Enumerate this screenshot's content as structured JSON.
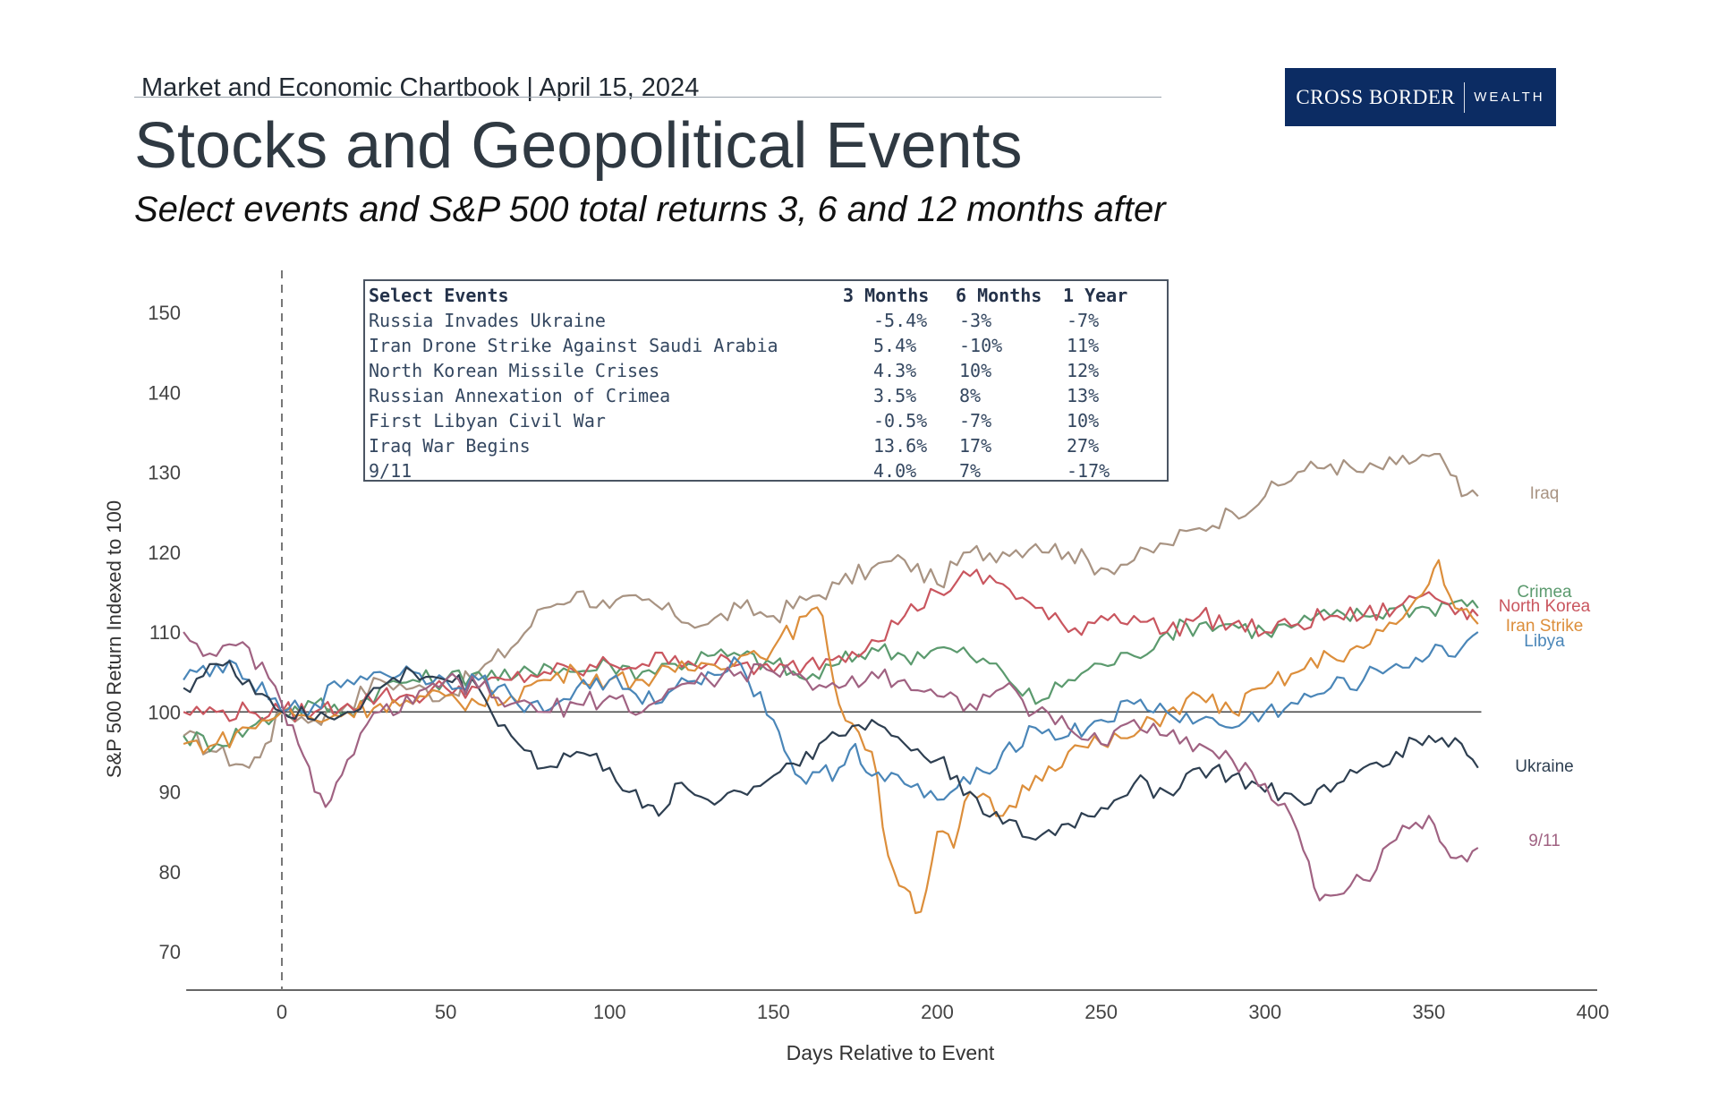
{
  "header": {
    "chartbook": "Market and Economic Chartbook | April 15, 2024",
    "title": "Stocks and Geopolitical Events",
    "subtitle": "Select events and S&P 500 total returns 3, 6 and 12 months after"
  },
  "logo": {
    "primary": "CROSS BORDER",
    "secondary": "WEALTH",
    "bg_color": "#0c2c63"
  },
  "table": {
    "headers": [
      "Select Events",
      "3 Months",
      "6 Months",
      "1 Year"
    ],
    "rows": [
      [
        "Russia Invades Ukraine",
        "-5.4%",
        "-3%",
        "-7%"
      ],
      [
        "Iran Drone Strike Against Saudi Arabia",
        "5.4%",
        "-10%",
        "11%"
      ],
      [
        "North Korean Missile Crises",
        "4.3%",
        "10%",
        "12%"
      ],
      [
        "Russian Annexation of Crimea",
        "3.5%",
        "8%",
        "13%"
      ],
      [
        "First Libyan Civil War",
        "-0.5%",
        "-7%",
        "10%"
      ],
      [
        "Iraq War Begins",
        "13.6%",
        "17%",
        "27%"
      ],
      [
        "9/11",
        "4.0%",
        "7%",
        "-17%"
      ]
    ]
  },
  "chart_data": {
    "type": "line",
    "xlabel": "Days Relative to Event",
    "ylabel": "S&P 500 Return Indexed to 100",
    "xlim": [
      -30,
      400
    ],
    "ylim": [
      65,
      155
    ],
    "xticks": [
      0,
      50,
      100,
      150,
      200,
      250,
      300,
      350,
      400
    ],
    "yticks": [
      70,
      80,
      90,
      100,
      110,
      120,
      130,
      140,
      150
    ],
    "reference_line_y": 100,
    "event_line_x": 0,
    "legend": "right-side labels",
    "series": [
      {
        "name": "Iraq",
        "color": "#a89382",
        "points": [
          [
            -30,
            97
          ],
          [
            -20,
            95
          ],
          [
            -10,
            93
          ],
          [
            -5,
            96
          ],
          [
            0,
            100
          ],
          [
            10,
            99
          ],
          [
            20,
            101
          ],
          [
            30,
            104
          ],
          [
            40,
            103
          ],
          [
            50,
            102
          ],
          [
            60,
            105
          ],
          [
            70,
            108
          ],
          [
            80,
            113
          ],
          [
            90,
            115
          ],
          [
            100,
            113
          ],
          [
            110,
            114
          ],
          [
            120,
            112
          ],
          [
            130,
            111
          ],
          [
            140,
            113
          ],
          [
            150,
            112
          ],
          [
            160,
            114
          ],
          [
            170,
            116
          ],
          [
            180,
            118
          ],
          [
            190,
            119
          ],
          [
            200,
            116
          ],
          [
            210,
            120
          ],
          [
            220,
            120
          ],
          [
            230,
            121
          ],
          [
            240,
            120
          ],
          [
            250,
            118
          ],
          [
            260,
            119
          ],
          [
            270,
            121
          ],
          [
            280,
            123
          ],
          [
            290,
            125
          ],
          [
            300,
            127
          ],
          [
            310,
            130
          ],
          [
            320,
            131
          ],
          [
            330,
            130
          ],
          [
            340,
            131
          ],
          [
            350,
            132
          ],
          [
            355,
            131
          ],
          [
            360,
            127
          ],
          [
            365,
            127
          ]
        ]
      },
      {
        "name": "Crimea",
        "color": "#5b9a6e",
        "points": [
          [
            -30,
            97
          ],
          [
            -20,
            96
          ],
          [
            -10,
            98
          ],
          [
            0,
            100
          ],
          [
            10,
            101
          ],
          [
            20,
            100
          ],
          [
            30,
            103
          ],
          [
            40,
            104
          ],
          [
            50,
            104
          ],
          [
            60,
            105
          ],
          [
            70,
            104
          ],
          [
            80,
            106
          ],
          [
            90,
            105
          ],
          [
            100,
            106
          ],
          [
            110,
            105
          ],
          [
            120,
            106
          ],
          [
            130,
            107
          ],
          [
            140,
            107
          ],
          [
            150,
            106
          ],
          [
            160,
            104
          ],
          [
            170,
            106
          ],
          [
            180,
            108
          ],
          [
            190,
            107
          ],
          [
            200,
            108
          ],
          [
            210,
            107
          ],
          [
            220,
            105
          ],
          [
            230,
            101
          ],
          [
            240,
            104
          ],
          [
            250,
            106
          ],
          [
            260,
            107
          ],
          [
            270,
            110
          ],
          [
            280,
            111
          ],
          [
            290,
            111
          ],
          [
            300,
            110
          ],
          [
            310,
            111
          ],
          [
            320,
            112
          ],
          [
            330,
            112
          ],
          [
            340,
            113
          ],
          [
            350,
            113
          ],
          [
            360,
            114
          ],
          [
            365,
            113
          ]
        ]
      },
      {
        "name": "North Korea",
        "color": "#c9565f",
        "points": [
          [
            -30,
            100
          ],
          [
            -20,
            100
          ],
          [
            -10,
            100
          ],
          [
            0,
            100
          ],
          [
            10,
            100
          ],
          [
            20,
            101
          ],
          [
            30,
            102
          ],
          [
            40,
            102
          ],
          [
            50,
            103
          ],
          [
            60,
            103
          ],
          [
            70,
            104
          ],
          [
            80,
            105
          ],
          [
            90,
            105
          ],
          [
            100,
            106
          ],
          [
            110,
            106
          ],
          [
            120,
            107
          ],
          [
            130,
            106
          ],
          [
            140,
            106
          ],
          [
            150,
            105
          ],
          [
            160,
            106
          ],
          [
            170,
            107
          ],
          [
            180,
            109
          ],
          [
            190,
            112
          ],
          [
            200,
            115
          ],
          [
            210,
            117
          ],
          [
            220,
            116
          ],
          [
            230,
            113
          ],
          [
            240,
            110
          ],
          [
            250,
            112
          ],
          [
            260,
            112
          ],
          [
            270,
            110
          ],
          [
            280,
            112
          ],
          [
            290,
            111
          ],
          [
            300,
            110
          ],
          [
            310,
            111
          ],
          [
            320,
            112
          ],
          [
            330,
            112
          ],
          [
            340,
            113
          ],
          [
            350,
            115
          ],
          [
            360,
            113
          ],
          [
            365,
            112
          ]
        ]
      },
      {
        "name": "Iran Strike",
        "color": "#dc8e3b",
        "points": [
          [
            -30,
            96
          ],
          [
            -20,
            96
          ],
          [
            -10,
            98
          ],
          [
            0,
            100
          ],
          [
            10,
            99
          ],
          [
            20,
            100
          ],
          [
            30,
            101
          ],
          [
            40,
            101
          ],
          [
            50,
            102
          ],
          [
            60,
            101
          ],
          [
            70,
            102
          ],
          [
            80,
            104
          ],
          [
            90,
            105
          ],
          [
            100,
            104
          ],
          [
            110,
            104
          ],
          [
            120,
            105
          ],
          [
            130,
            106
          ],
          [
            140,
            107
          ],
          [
            150,
            108
          ],
          [
            160,
            112
          ],
          [
            165,
            112
          ],
          [
            170,
            101
          ],
          [
            180,
            95
          ],
          [
            185,
            82
          ],
          [
            190,
            78
          ],
          [
            195,
            75
          ],
          [
            200,
            85
          ],
          [
            205,
            83
          ],
          [
            210,
            90
          ],
          [
            220,
            87
          ],
          [
            230,
            92
          ],
          [
            240,
            95
          ],
          [
            250,
            96
          ],
          [
            260,
            97
          ],
          [
            270,
            100
          ],
          [
            280,
            102
          ],
          [
            290,
            100
          ],
          [
            300,
            103
          ],
          [
            310,
            105
          ],
          [
            320,
            107
          ],
          [
            330,
            108
          ],
          [
            340,
            111
          ],
          [
            350,
            116
          ],
          [
            353,
            119
          ],
          [
            358,
            113
          ],
          [
            365,
            111
          ]
        ]
      },
      {
        "name": "Libya",
        "color": "#4a86b8",
        "points": [
          [
            -30,
            104
          ],
          [
            -20,
            106
          ],
          [
            -10,
            104
          ],
          [
            0,
            100
          ],
          [
            10,
            101
          ],
          [
            20,
            104
          ],
          [
            30,
            105
          ],
          [
            40,
            105
          ],
          [
            50,
            104
          ],
          [
            60,
            104
          ],
          [
            70,
            102
          ],
          [
            80,
            100
          ],
          [
            90,
            103
          ],
          [
            100,
            104
          ],
          [
            110,
            101
          ],
          [
            120,
            103
          ],
          [
            130,
            105
          ],
          [
            140,
            106
          ],
          [
            150,
            99
          ],
          [
            155,
            94
          ],
          [
            160,
            91
          ],
          [
            170,
            93
          ],
          [
            175,
            96
          ],
          [
            180,
            92
          ],
          [
            190,
            91
          ],
          [
            200,
            89
          ],
          [
            210,
            91
          ],
          [
            220,
            95
          ],
          [
            230,
            98
          ],
          [
            240,
            97
          ],
          [
            250,
            99
          ],
          [
            260,
            101
          ],
          [
            270,
            100
          ],
          [
            280,
            99
          ],
          [
            290,
            98
          ],
          [
            300,
            100
          ],
          [
            310,
            101
          ],
          [
            320,
            103
          ],
          [
            330,
            104
          ],
          [
            340,
            106
          ],
          [
            350,
            107
          ],
          [
            360,
            108
          ],
          [
            365,
            110
          ]
        ]
      },
      {
        "name": "Ukraine",
        "color": "#2e3f51",
        "points": [
          [
            -30,
            103
          ],
          [
            -20,
            106
          ],
          [
            -10,
            104
          ],
          [
            0,
            100
          ],
          [
            10,
            99
          ],
          [
            20,
            100
          ],
          [
            30,
            103
          ],
          [
            40,
            105
          ],
          [
            50,
            104
          ],
          [
            60,
            103
          ],
          [
            70,
            97
          ],
          [
            80,
            93
          ],
          [
            90,
            95
          ],
          [
            100,
            93
          ],
          [
            110,
            88
          ],
          [
            115,
            87
          ],
          [
            120,
            91
          ],
          [
            130,
            89
          ],
          [
            140,
            90
          ],
          [
            150,
            92
          ],
          [
            160,
            95
          ],
          [
            170,
            97
          ],
          [
            180,
            99
          ],
          [
            190,
            96
          ],
          [
            200,
            94
          ],
          [
            210,
            90
          ],
          [
            220,
            86
          ],
          [
            230,
            84
          ],
          [
            240,
            86
          ],
          [
            250,
            88
          ],
          [
            260,
            91
          ],
          [
            270,
            90
          ],
          [
            280,
            93
          ],
          [
            290,
            92
          ],
          [
            300,
            90
          ],
          [
            310,
            89
          ],
          [
            320,
            90
          ],
          [
            330,
            93
          ],
          [
            340,
            95
          ],
          [
            350,
            97
          ],
          [
            360,
            96
          ],
          [
            365,
            93
          ]
        ]
      },
      {
        "name": "9/11",
        "color": "#a06282",
        "points": [
          [
            -30,
            110
          ],
          [
            -20,
            107
          ],
          [
            -10,
            108
          ],
          [
            0,
            101
          ],
          [
            5,
            96
          ],
          [
            10,
            90
          ],
          [
            15,
            89
          ],
          [
            20,
            94
          ],
          [
            30,
            100
          ],
          [
            40,
            101
          ],
          [
            50,
            104
          ],
          [
            60,
            103
          ],
          [
            70,
            101
          ],
          [
            80,
            100
          ],
          [
            90,
            101
          ],
          [
            100,
            102
          ],
          [
            110,
            100
          ],
          [
            120,
            103
          ],
          [
            130,
            104
          ],
          [
            140,
            105
          ],
          [
            150,
            105
          ],
          [
            160,
            104
          ],
          [
            170,
            103
          ],
          [
            180,
            105
          ],
          [
            190,
            104
          ],
          [
            200,
            102
          ],
          [
            210,
            101
          ],
          [
            220,
            103
          ],
          [
            230,
            100
          ],
          [
            240,
            98
          ],
          [
            250,
            96
          ],
          [
            260,
            99
          ],
          [
            270,
            97
          ],
          [
            280,
            96
          ],
          [
            290,
            94
          ],
          [
            300,
            91
          ],
          [
            310,
            85
          ],
          [
            315,
            78
          ],
          [
            320,
            77
          ],
          [
            330,
            79
          ],
          [
            340,
            84
          ],
          [
            350,
            87
          ],
          [
            355,
            83
          ],
          [
            360,
            82
          ],
          [
            365,
            83
          ]
        ]
      }
    ],
    "end_labels": [
      "Iraq",
      "Crimea",
      "North Korea",
      "Iran Strike",
      "Libya",
      "Ukraine",
      "9/11"
    ]
  }
}
